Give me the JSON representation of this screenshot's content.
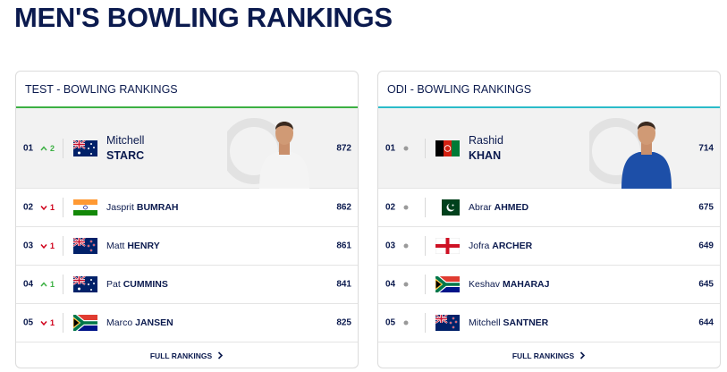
{
  "header": {
    "title": "MEN'S BOWLING RANKINGS"
  },
  "panels": [
    {
      "title": "TEST - BOWLING RANKINGS",
      "accent": "#3cb043",
      "rows": [
        {
          "rank": "01",
          "movement": {
            "direction": "up",
            "places": 2
          },
          "first_name": "Mitchell",
          "last_name": "STARC",
          "rating": 872
        },
        {
          "rank": "02",
          "movement": {
            "direction": "down",
            "places": 1
          },
          "first_name": "Jasprit",
          "last_name": "BUMRAH",
          "rating": 862
        },
        {
          "rank": "03",
          "movement": {
            "direction": "down",
            "places": 1
          },
          "first_name": "Matt",
          "last_name": "HENRY",
          "rating": 861
        },
        {
          "rank": "04",
          "movement": {
            "direction": "up",
            "places": 1
          },
          "first_name": "Pat",
          "last_name": "CUMMINS",
          "rating": 841
        },
        {
          "rank": "05",
          "movement": {
            "direction": "down",
            "places": 1
          },
          "first_name": "Marco",
          "last_name": "JANSEN",
          "rating": 825
        }
      ],
      "footer": "FULL RANKINGS"
    },
    {
      "title": "ODI - BOWLING RANKINGS",
      "accent": "#2bbcc9",
      "rows": [
        {
          "rank": "01",
          "movement": {
            "direction": "none"
          },
          "first_name": "Rashid",
          "last_name": "KHAN",
          "rating": 714
        },
        {
          "rank": "02",
          "movement": {
            "direction": "none"
          },
          "first_name": "Abrar",
          "last_name": "AHMED",
          "rating": 675
        },
        {
          "rank": "03",
          "movement": {
            "direction": "none"
          },
          "first_name": "Jofra",
          "last_name": "ARCHER",
          "rating": 649
        },
        {
          "rank": "04",
          "movement": {
            "direction": "none"
          },
          "first_name": "Keshav",
          "last_name": "MAHARAJ",
          "rating": 645
        },
        {
          "rank": "05",
          "movement": {
            "direction": "none"
          },
          "first_name": "Mitchell",
          "last_name": "SANTNER",
          "rating": 644
        }
      ],
      "footer": "FULL RANKINGS"
    }
  ]
}
